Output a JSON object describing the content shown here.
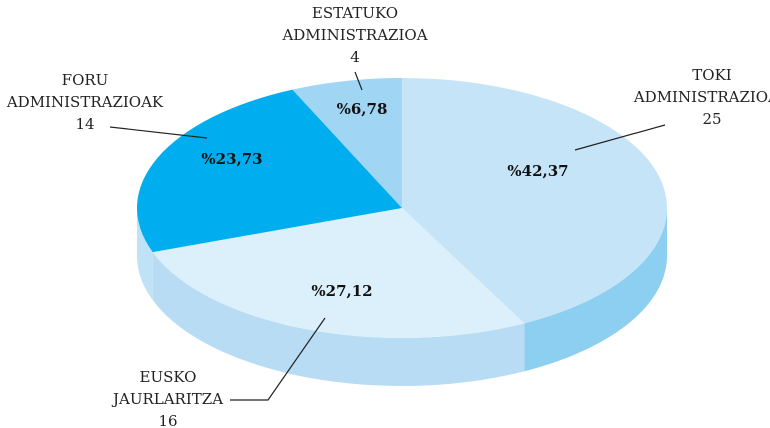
{
  "chart_data": {
    "type": "pie",
    "categories": [
      "TOKI ADMINISTRAZIOAK",
      "EUSKO JAURLARITZA",
      "FORU ADMINISTRAZIOAK",
      "ESTATUKO ADMINISTRAZIOA"
    ],
    "values": [
      42.37,
      27.12,
      23.73,
      6.78
    ],
    "value_labels": [
      "%42,37",
      "%27,12",
      "%23,73",
      "%6,78"
    ],
    "counts": [
      25,
      16,
      14,
      4
    ],
    "colors": [
      "#c6e4f7",
      "#dcf0fc",
      "#00aeef",
      "#a0d5f4"
    ],
    "side_colors": [
      "#8ccff0",
      "#b8dcf3",
      "#bfe2f6",
      "#a0d5f4"
    ]
  }
}
